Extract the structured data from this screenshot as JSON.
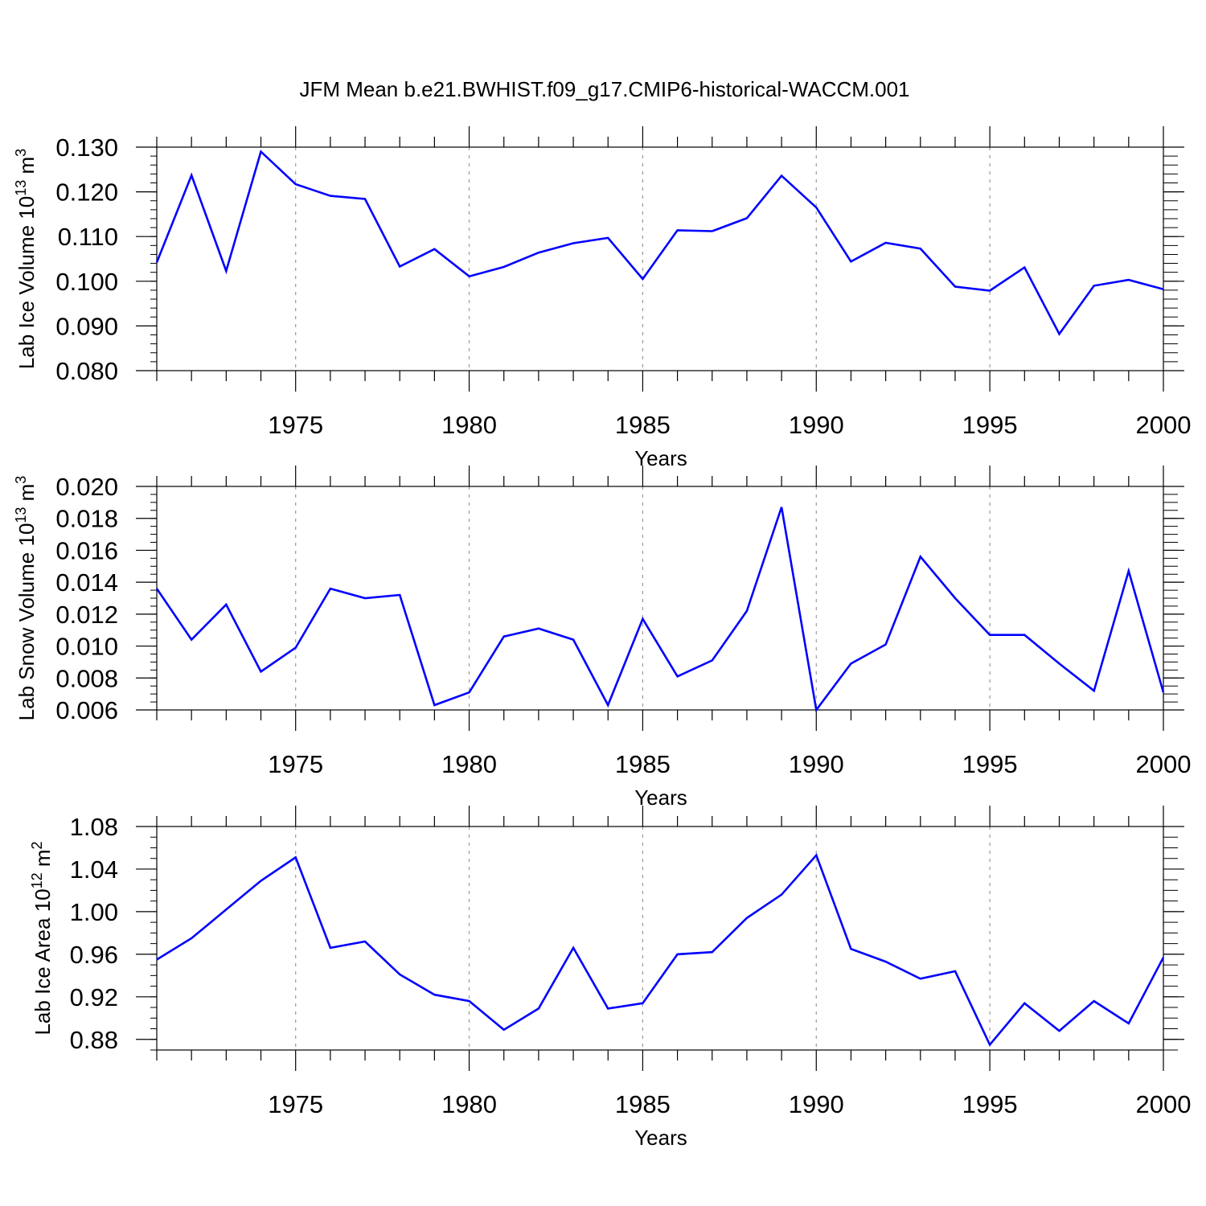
{
  "title": "JFM Mean b.e21.BWHIST.f09_g17.CMIP6-historical-WACCM.001",
  "chart_data": [
    {
      "type": "line",
      "name": "ice-volume",
      "title": "JFM Mean b.e21.BWHIST.f09_g17.CMIP6-historical-WACCM.001",
      "xlabel": "Years",
      "ylabel_main": "Lab Ice Volume 10",
      "ylabel_sup": "13",
      "ylabel_unit": " m",
      "ylabel_unit_sup": "3",
      "xlim": [
        1971,
        2000
      ],
      "ylim": [
        0.08,
        0.13
      ],
      "yticks": [
        0.08,
        0.09,
        0.1,
        0.11,
        0.12,
        0.13
      ],
      "ytick_labels": [
        "0.080",
        "0.090",
        "0.100",
        "0.110",
        "0.120",
        "0.130"
      ],
      "xticks": [
        1975,
        1980,
        1985,
        1990,
        1995,
        2000
      ],
      "xtick_labels": [
        "1975",
        "1980",
        "1985",
        "1990",
        "1995",
        "2000"
      ],
      "grid": "vertical dashed at major x ticks",
      "color": "#0000ff",
      "x": [
        1971,
        1972,
        1973,
        1974,
        1975,
        1976,
        1977,
        1978,
        1979,
        1980,
        1981,
        1982,
        1983,
        1984,
        1985,
        1986,
        1987,
        1988,
        1989,
        1990,
        1991,
        1992,
        1993,
        1994,
        1995,
        1996,
        1997,
        1998,
        1999,
        2000
      ],
      "values": [
        0.1042,
        0.1237,
        0.1023,
        0.129,
        0.1217,
        0.1191,
        0.1184,
        0.1033,
        0.1072,
        0.1011,
        0.1032,
        0.1064,
        0.1085,
        0.1097,
        0.1005,
        0.1114,
        0.1112,
        0.1141,
        0.1236,
        0.1165,
        0.1044,
        0.1086,
        0.1073,
        0.0988,
        0.0979,
        0.1031,
        0.0882,
        0.099,
        0.1003,
        0.0982
      ]
    },
    {
      "type": "line",
      "name": "snow-volume",
      "xlabel": "Years",
      "ylabel_main": "Lab Snow Volume 10",
      "ylabel_sup": "13",
      "ylabel_unit": " m",
      "ylabel_unit_sup": "3",
      "xlim": [
        1971,
        2000
      ],
      "ylim": [
        0.006,
        0.02
      ],
      "yticks": [
        0.006,
        0.008,
        0.01,
        0.012,
        0.014,
        0.016,
        0.018,
        0.02
      ],
      "ytick_labels": [
        "0.006",
        "0.008",
        "0.010",
        "0.012",
        "0.014",
        "0.016",
        "0.018",
        "0.020"
      ],
      "xticks": [
        1975,
        1980,
        1985,
        1990,
        1995,
        2000
      ],
      "xtick_labels": [
        "1975",
        "1980",
        "1985",
        "1990",
        "1995",
        "2000"
      ],
      "grid": "vertical dashed at major x ticks",
      "color": "#0000ff",
      "x": [
        1971,
        1972,
        1973,
        1974,
        1975,
        1976,
        1977,
        1978,
        1979,
        1980,
        1981,
        1982,
        1983,
        1984,
        1985,
        1986,
        1987,
        1988,
        1989,
        1990,
        1991,
        1992,
        1993,
        1994,
        1995,
        1996,
        1997,
        1998,
        1999,
        2000
      ],
      "values": [
        0.0136,
        0.0104,
        0.0126,
        0.0084,
        0.0099,
        0.0136,
        0.013,
        0.0132,
        0.0063,
        0.0071,
        0.0106,
        0.0111,
        0.0104,
        0.0063,
        0.0117,
        0.0081,
        0.0091,
        0.0122,
        0.0187,
        0.006,
        0.0089,
        0.0101,
        0.0156,
        0.013,
        0.0107,
        0.0107,
        0.0089,
        0.0072,
        0.0147,
        0.0071
      ]
    },
    {
      "type": "line",
      "name": "ice-area",
      "xlabel": "Years",
      "ylabel_main": "Lab Ice Area 10",
      "ylabel_sup": "12",
      "ylabel_unit": " m",
      "ylabel_unit_sup": "2",
      "xlim": [
        1971,
        2000
      ],
      "ylim": [
        0.87,
        1.08
      ],
      "yticks": [
        0.88,
        0.92,
        0.96,
        1.0,
        1.04,
        1.08
      ],
      "ytick_labels": [
        "0.88",
        "0.92",
        "0.96",
        "1.00",
        "1.04",
        "1.08"
      ],
      "xticks": [
        1975,
        1980,
        1985,
        1990,
        1995,
        2000
      ],
      "xtick_labels": [
        "1975",
        "1980",
        "1985",
        "1990",
        "1995",
        "2000"
      ],
      "grid": "vertical dashed at major x ticks",
      "color": "#0000ff",
      "x": [
        1971,
        1972,
        1973,
        1974,
        1975,
        1976,
        1977,
        1978,
        1979,
        1980,
        1981,
        1982,
        1983,
        1984,
        1985,
        1986,
        1987,
        1988,
        1989,
        1990,
        1991,
        1992,
        1993,
        1994,
        1995,
        1996,
        1997,
        1998,
        1999,
        2000
      ],
      "values": [
        0.955,
        0.975,
        1.002,
        1.029,
        1.051,
        0.966,
        0.972,
        0.941,
        0.922,
        0.916,
        0.889,
        0.909,
        0.966,
        0.909,
        0.914,
        0.96,
        0.962,
        0.994,
        1.016,
        1.053,
        0.965,
        0.953,
        0.937,
        0.944,
        0.875,
        0.914,
        0.888,
        0.916,
        0.895,
        0.957
      ]
    }
  ]
}
